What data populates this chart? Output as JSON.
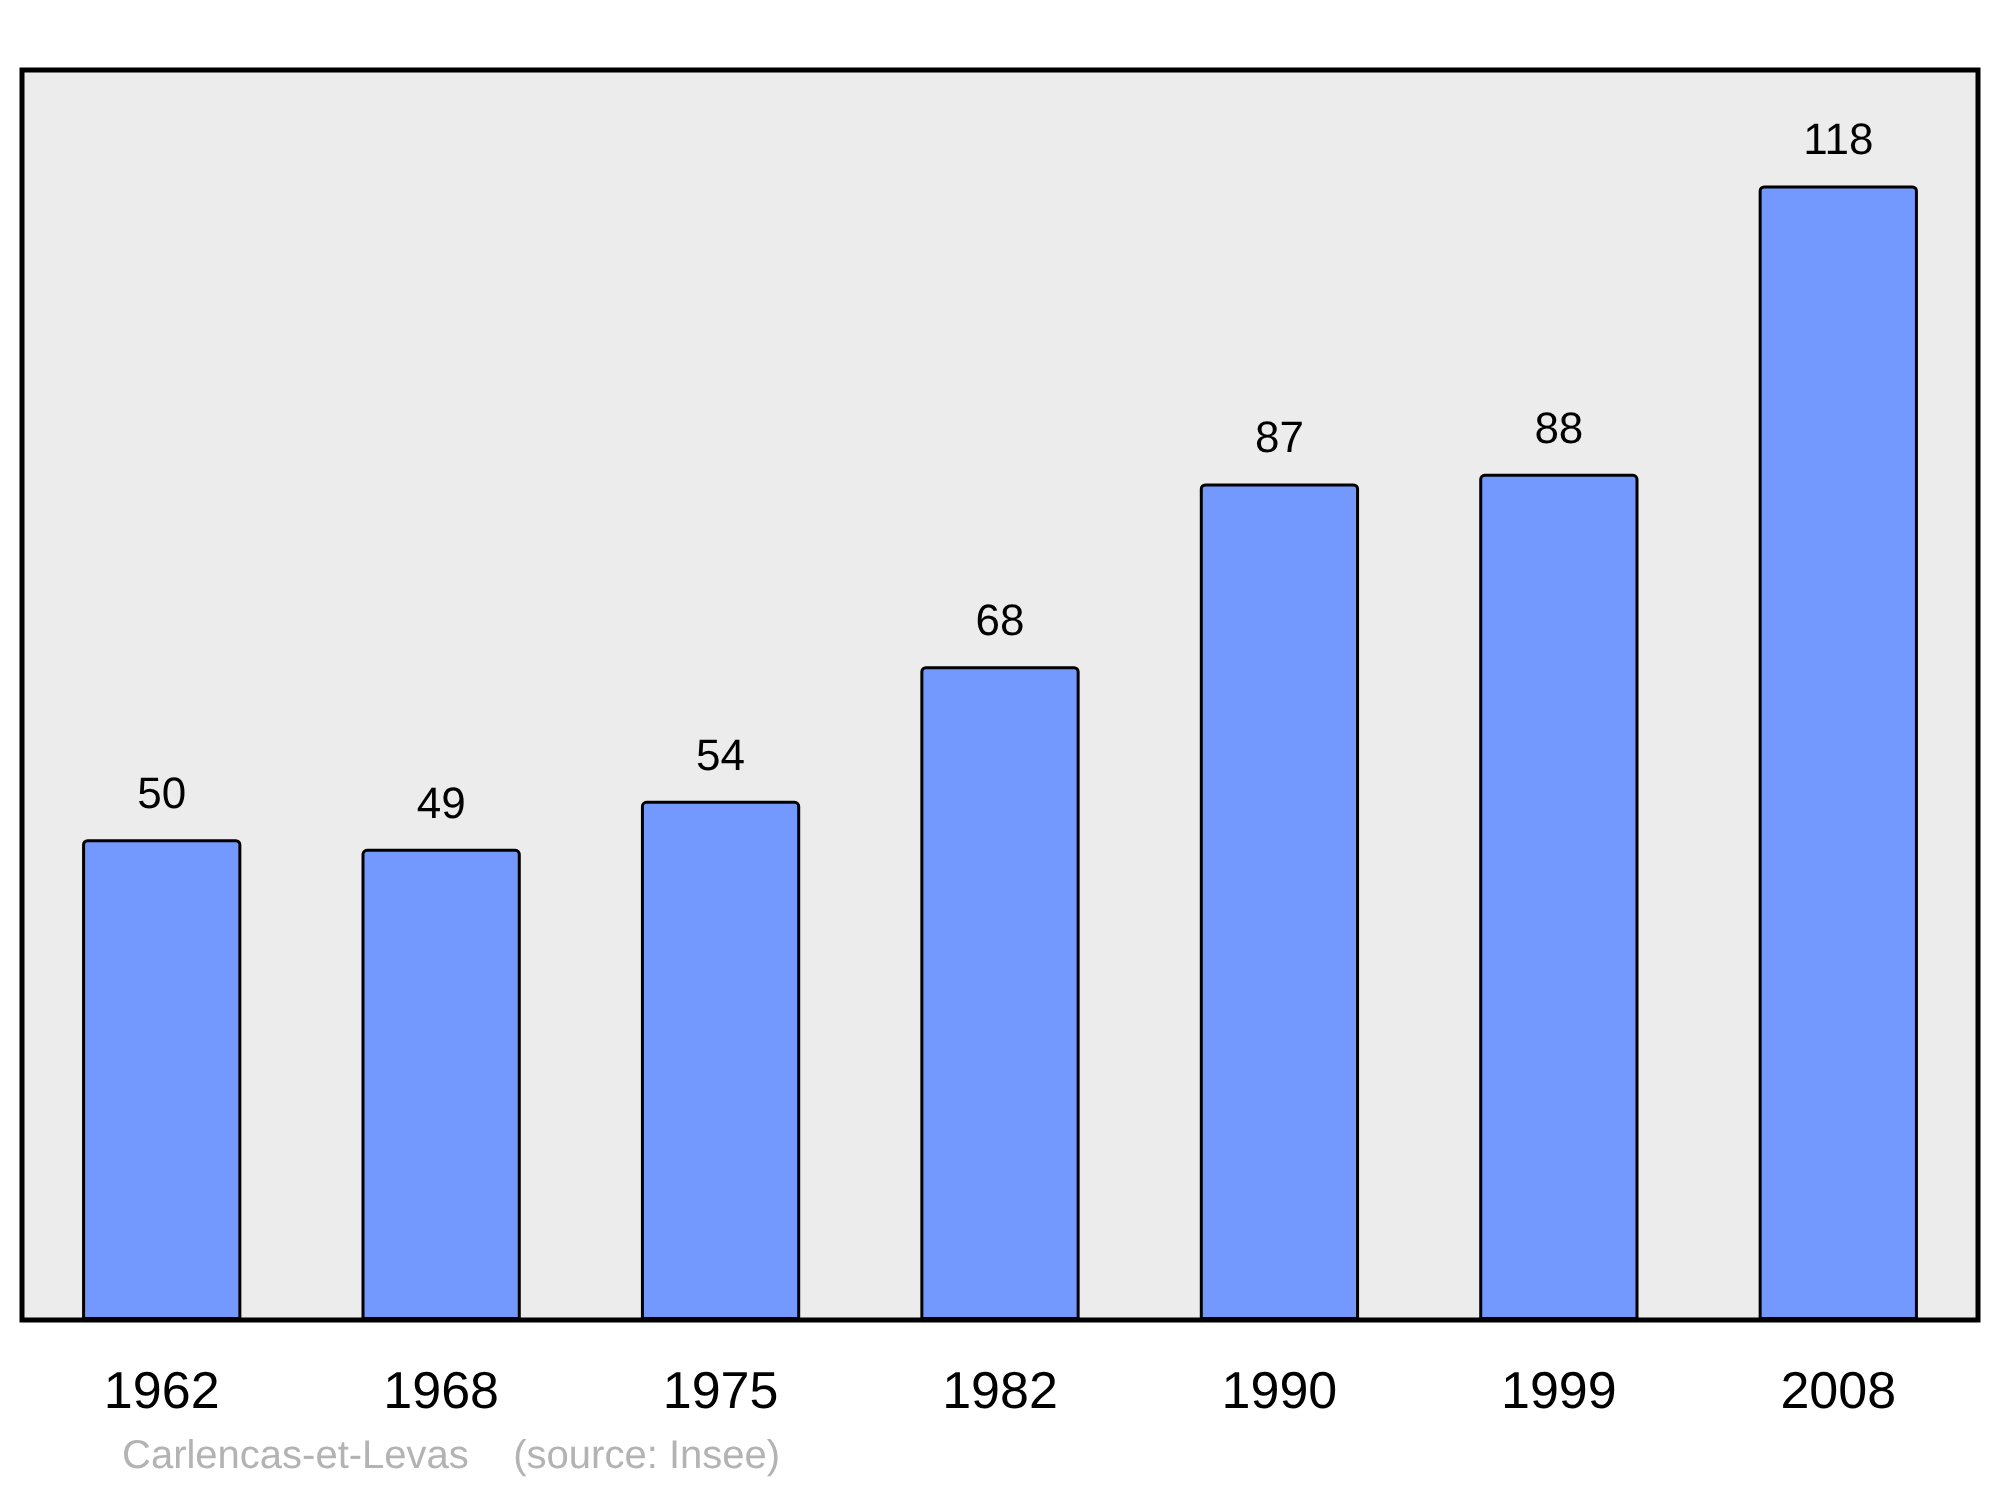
{
  "chart_data": {
    "type": "bar",
    "categories": [
      "1962",
      "1968",
      "1975",
      "1982",
      "1990",
      "1999",
      "2008"
    ],
    "values": [
      50,
      49,
      54,
      68,
      87,
      88,
      118
    ],
    "color": "#7399ff",
    "data_labels": true,
    "annotations": [
      "Carlencas-et-Levas    (source: Insee)"
    ]
  }
}
